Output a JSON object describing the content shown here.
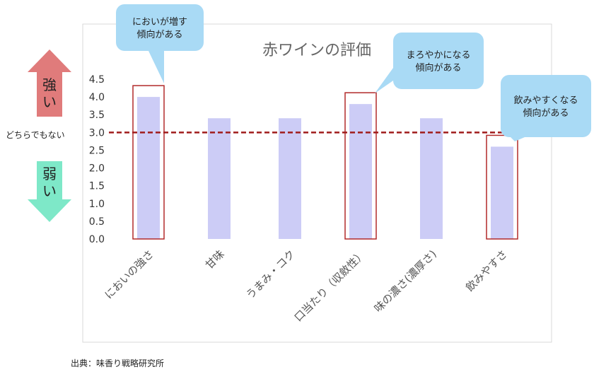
{
  "chart_data": {
    "type": "bar",
    "title": "赤ワインの評価",
    "categories": [
      "においの強さ",
      "甘味",
      "うまみ・コク",
      "口当たり（収斂性）",
      "味の濃さ(濃厚さ)",
      "飲みやすさ"
    ],
    "values": [
      4.0,
      3.4,
      3.4,
      3.8,
      3.4,
      2.6
    ],
    "ylim": [
      0,
      4.5
    ],
    "yticks": [
      "0.0",
      "0.5",
      "1.0",
      "1.5",
      "2.0",
      "2.5",
      "3.0",
      "3.5",
      "4.0",
      "4.5"
    ],
    "reference_line": 3.0,
    "highlighted": [
      0,
      3,
      5
    ],
    "bar_color": "#ccccf6",
    "reference_color": "#a01c1c",
    "highlight_box_color": "#b22a2a",
    "grid": false,
    "callouts": [
      {
        "category_index": 0,
        "lines": [
          "においが増す",
          "傾向がある"
        ]
      },
      {
        "category_index": 3,
        "lines": [
          "まろやかになる",
          "傾向がある"
        ]
      },
      {
        "category_index": 5,
        "lines": [
          "飲みやすくなる",
          "傾向がある"
        ]
      }
    ]
  },
  "scale_labels": {
    "strong": "強い",
    "neutral": "どちらでもない",
    "weak": "弱い"
  },
  "colors": {
    "strong_arrow": "#e07b7b",
    "weak_arrow": "#7ee8c8",
    "callout_fill": "#a9daf5"
  },
  "source": "出典：味香り戦略研究所"
}
